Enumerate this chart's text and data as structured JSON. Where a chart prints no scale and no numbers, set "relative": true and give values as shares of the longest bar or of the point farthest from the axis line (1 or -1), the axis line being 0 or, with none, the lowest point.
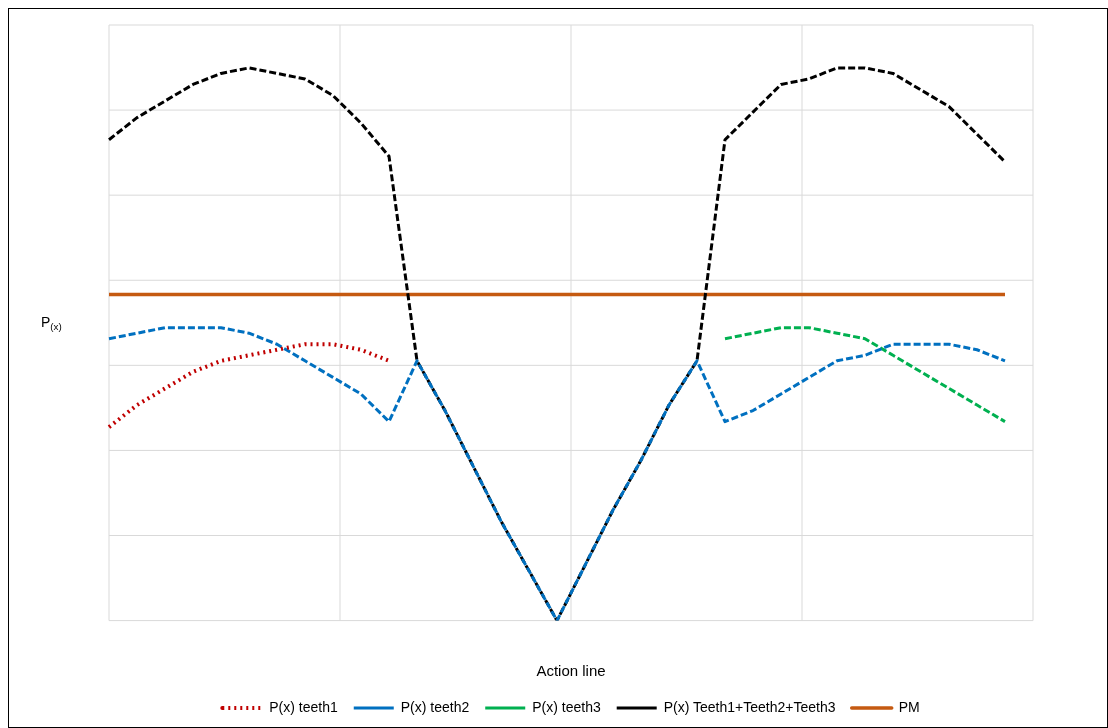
{
  "chart_data": {
    "type": "line",
    "relative": true,
    "xlabel": "Action line",
    "ylabel": "P$_{(x)}$",
    "grid": true,
    "legend": "bottom",
    "marker": "none",
    "categories": [
      null,
      null,
      null,
      null,
      null,
      null,
      null,
      null,
      null,
      null,
      null,
      null,
      null,
      null,
      null,
      null,
      null,
      null,
      null,
      null,
      null,
      null,
      null,
      null,
      null,
      null,
      null,
      null,
      null,
      null,
      null,
      null,
      null,
      null
    ],
    "series": [
      {
        "name": "P(x) teeth1",
        "color": "#c00000",
        "line_style": "dotted",
        "values": [
          0.35,
          0.39,
          0.42,
          0.45,
          0.47,
          0.48,
          0.49,
          0.5,
          0.5,
          0.49,
          0.47,
          null,
          null,
          null,
          null,
          null,
          null,
          null,
          null,
          null,
          null,
          null,
          null,
          null,
          null,
          null,
          null,
          null,
          null,
          null,
          null,
          null,
          null,
          null
        ]
      },
      {
        "name": "P(x) teeth2",
        "color": "#0070c0",
        "line_style": "dashed",
        "values": [
          0.51,
          0.52,
          0.53,
          0.53,
          0.53,
          0.52,
          0.5,
          0.47,
          0.44,
          0.41,
          0.36,
          0.47,
          0.38,
          0.28,
          0.18,
          0.09,
          0,
          0.1,
          0.2,
          0.29,
          0.39,
          0.47,
          0.36,
          0.38,
          0.41,
          0.44,
          0.47,
          0.48,
          0.5,
          0.5,
          0.5,
          0.49,
          0.47,
          null
        ]
      },
      {
        "name": "P(x) teeth3",
        "color": "#00b050",
        "line_style": "dashed",
        "values": [
          null,
          null,
          null,
          null,
          null,
          null,
          null,
          null,
          null,
          null,
          null,
          null,
          null,
          null,
          null,
          null,
          null,
          null,
          null,
          null,
          null,
          null,
          0.51,
          0.52,
          0.53,
          0.53,
          0.52,
          0.51,
          0.48,
          0.45,
          0.42,
          0.39,
          0.36,
          null
        ]
      },
      {
        "name": "P(x) Teeth1+Teeth2+Teeth3",
        "color": "#000000",
        "line_style": "dashed",
        "values": [
          0.87,
          0.91,
          0.94,
          0.97,
          0.99,
          1,
          0.99,
          0.98,
          0.95,
          0.9,
          0.84,
          0.47,
          0.38,
          0.28,
          0.18,
          0.09,
          0,
          0.1,
          0.2,
          0.29,
          0.39,
          0.47,
          0.87,
          0.92,
          0.97,
          0.98,
          1,
          1,
          0.99,
          0.96,
          0.93,
          0.88,
          0.83,
          null
        ]
      },
      {
        "name": "PM",
        "color": "#c55a11",
        "line_style": "solid",
        "values": [
          0.59,
          0.59,
          0.59,
          0.59,
          0.59,
          0.59,
          0.59,
          0.59,
          0.59,
          0.59,
          0.59,
          0.59,
          0.59,
          0.59,
          0.59,
          0.59,
          0.59,
          0.59,
          0.59,
          0.59,
          0.59,
          0.59,
          0.59,
          0.59,
          0.59,
          0.59,
          0.59,
          0.59,
          0.59,
          0.59,
          0.59,
          0.59,
          0.59,
          null
        ]
      }
    ]
  }
}
